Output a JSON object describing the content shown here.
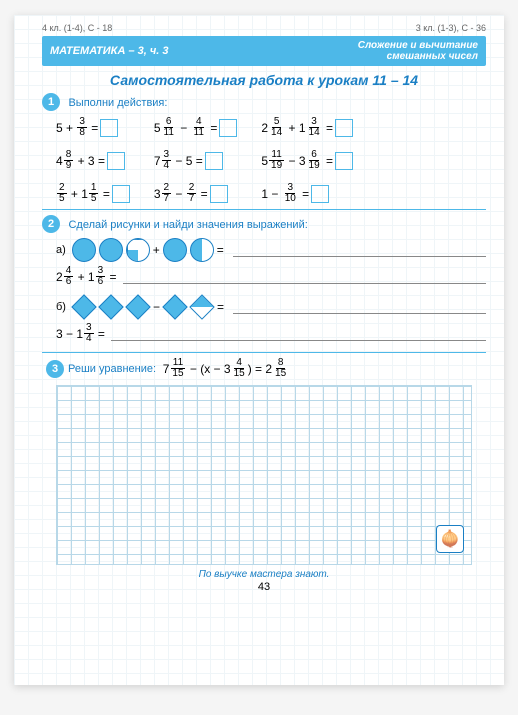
{
  "refs": {
    "left": "4 кл. (1-4), С - 18",
    "right": "3 кл. (1-3), С - 36"
  },
  "header": {
    "subject": "МАТЕМАТИКА – 3, ч. 3",
    "topic1": "Сложение и вычитание",
    "topic2": "смешанных чисел"
  },
  "title": "Самостоятельная работа к урокам 11 – 14",
  "task1": {
    "num": "1",
    "text": "Выполни действия:"
  },
  "p": {
    "a1_w": "5 +",
    "a1_n": "3",
    "a1_d": "8",
    "a2_w": "4",
    "a2_n": "8",
    "a2_d": "9",
    "a2_op": "+ 3 =",
    "a3_n1": "2",
    "a3_d1": "5",
    "a3_op": "+ 1",
    "a3_n2": "1",
    "a3_d2": "5",
    "b1_w": "5",
    "b1_n1": "6",
    "b1_d1": "11",
    "b1_op": "−",
    "b1_n2": "4",
    "b1_d2": "11",
    "b2_w": "7",
    "b2_n": "3",
    "b2_d": "4",
    "b2_op": "− 5 =",
    "b3_w": "3",
    "b3_n1": "2",
    "b3_d1": "7",
    "b3_op": "−",
    "b3_n2": "2",
    "b3_d2": "7",
    "c1_w1": "2",
    "c1_n1": "5",
    "c1_d1": "14",
    "c1_op": "+ 1",
    "c1_n2": "3",
    "c1_d2": "14",
    "c2_w1": "5",
    "c2_n1": "11",
    "c2_d1": "19",
    "c2_op": "− 3",
    "c2_n2": "6",
    "c2_d2": "19",
    "c3_w": "1 −",
    "c3_n": "3",
    "c3_d": "10"
  },
  "task2": {
    "num": "2",
    "text": "Сделай рисунки и найди значения выражений:"
  },
  "eq2a": {
    "label": "а)",
    "w": "2",
    "n1": "4",
    "d1": "6",
    "op": "+ 1",
    "n2": "3",
    "d2": "6"
  },
  "eq2b": {
    "label": "б)",
    "w": "3 − 1",
    "n": "3",
    "d": "4"
  },
  "task3": {
    "num": "3",
    "text": "Реши уравнение:",
    "lhs_w": "7",
    "lhs_n": "11",
    "lhs_d": "15",
    "mid": "− (x − 3",
    "mid_n": "4",
    "mid_d": "15",
    "rhs": ") = 2",
    "rhs_n": "8",
    "rhs_d": "15"
  },
  "footer": "По выучке мастера знают.",
  "pagenum": "43",
  "colors": {
    "accent": "#4db8e8",
    "text": "#1a7fc4"
  }
}
